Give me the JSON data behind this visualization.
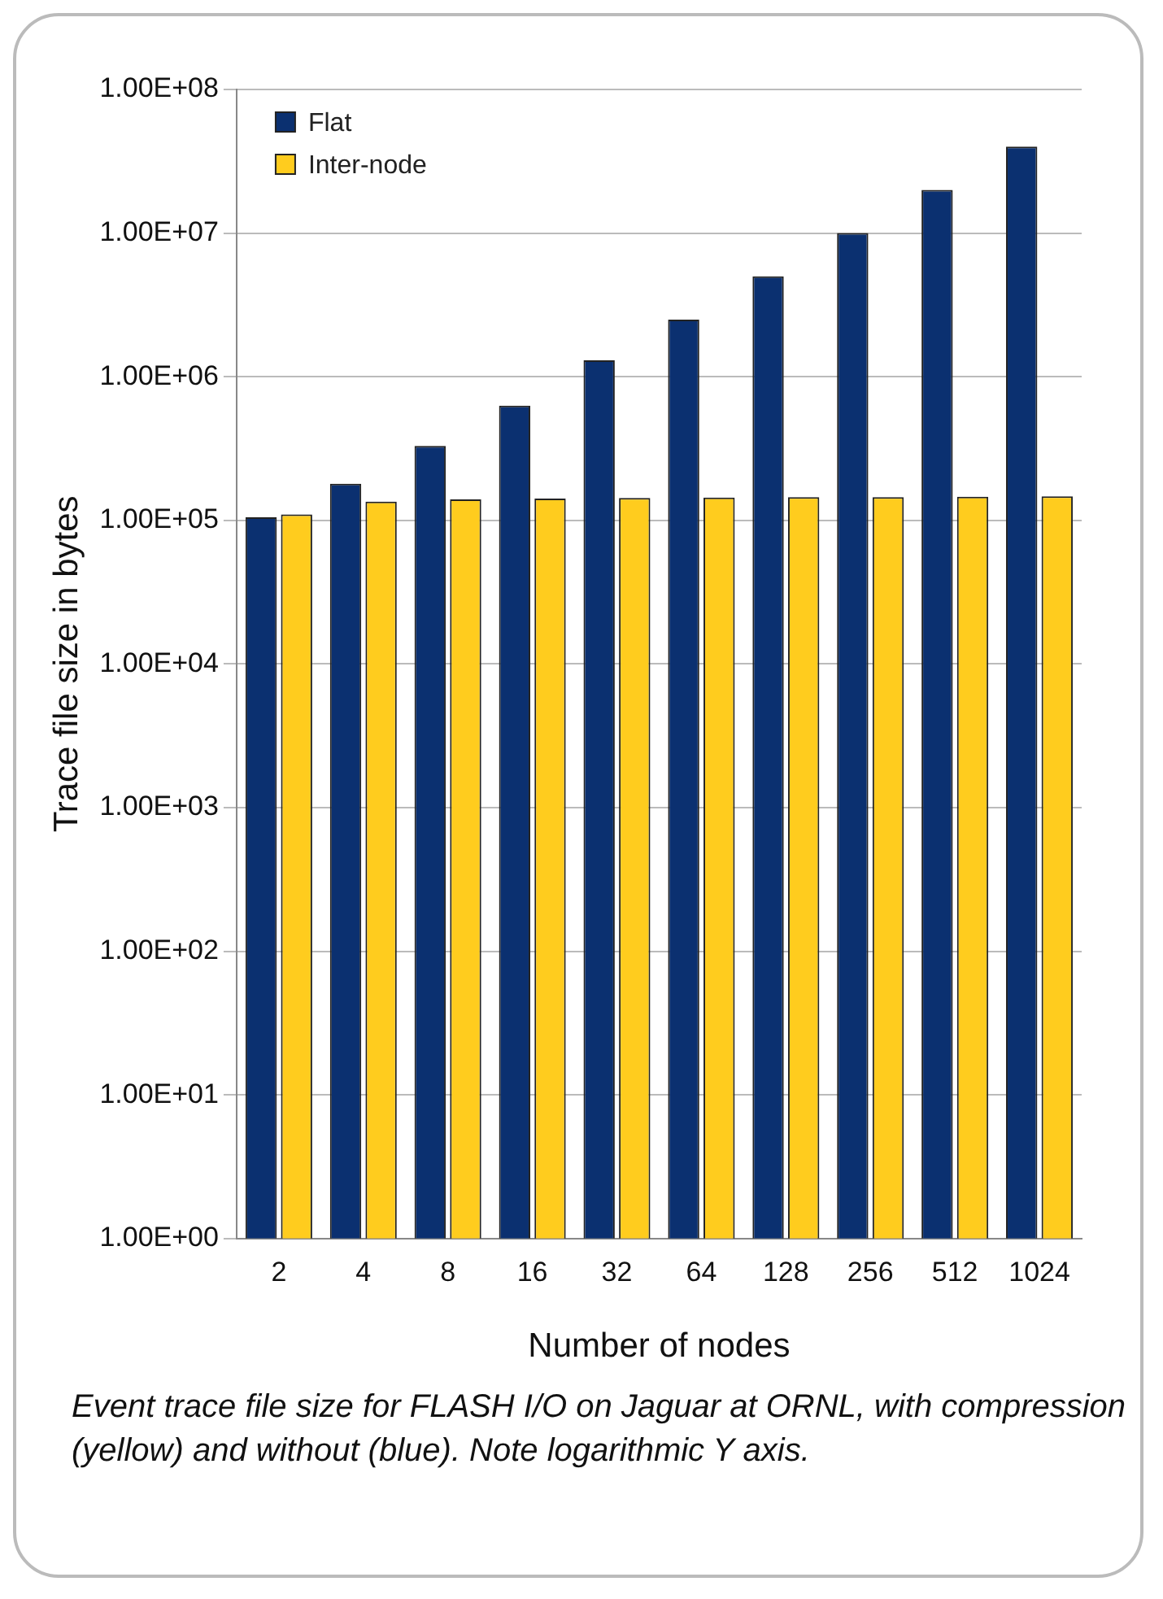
{
  "chart_data": {
    "type": "bar",
    "xlabel": "Number of nodes",
    "ylabel": "Trace file size in bytes",
    "categories": [
      "2",
      "4",
      "8",
      "16",
      "32",
      "64",
      "128",
      "256",
      "512",
      "1024"
    ],
    "series": [
      {
        "name": "Flat",
        "color": "#0b3070",
        "values": [
          105000,
          180000,
          330000,
          630000,
          1300000,
          2500000,
          5000000,
          10000000,
          20000000,
          40000000
        ]
      },
      {
        "name": "Inter-node",
        "color": "#ffcc1e",
        "values": [
          110000,
          135000,
          140000,
          142000,
          143000,
          144000,
          145000,
          145000,
          146000,
          147000
        ]
      }
    ],
    "log": "y",
    "ylim": [
      1,
      100000000
    ],
    "yticks": [
      {
        "value": 1,
        "label": "1.00E+00"
      },
      {
        "value": 10,
        "label": "1.00E+01"
      },
      {
        "value": 100,
        "label": "1.00E+02"
      },
      {
        "value": 1000,
        "label": "1.00E+03"
      },
      {
        "value": 10000,
        "label": "1.00E+04"
      },
      {
        "value": 100000,
        "label": "1.00E+05"
      },
      {
        "value": 1000000,
        "label": "1.00E+06"
      },
      {
        "value": 10000000,
        "label": "1.00E+07"
      },
      {
        "value": 100000000,
        "label": "1.00E+08"
      }
    ],
    "grid": "y",
    "legend": "top left",
    "annotations": [
      "Event trace file size for FLASH I/O on Jaguar at ORNL, with compression (yellow) and without (blue). Note logarithmic Y axis."
    ]
  }
}
